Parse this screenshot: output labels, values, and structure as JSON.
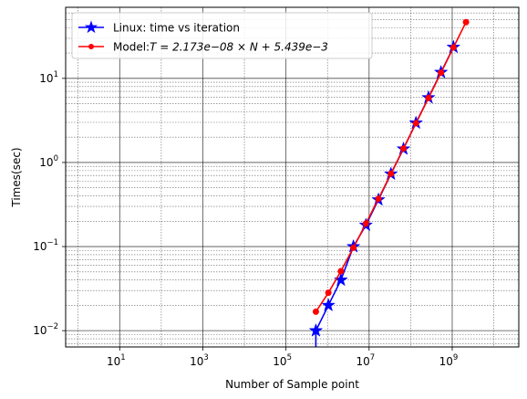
{
  "chart_data": {
    "type": "line",
    "xlabel": "Number of Sample point",
    "ylabel": "Times(sec)",
    "xscale": "log",
    "yscale": "log",
    "xlim": [
      0.5,
      40000000000.0
    ],
    "ylim": [
      0.0064,
      70
    ],
    "x_ticks": [
      {
        "value": 10,
        "base": "10",
        "exp": "1"
      },
      {
        "value": 1000,
        "base": "10",
        "exp": "3"
      },
      {
        "value": 100000,
        "base": "10",
        "exp": "5"
      },
      {
        "value": 10000000,
        "base": "10",
        "exp": "7"
      },
      {
        "value": 1000000000,
        "base": "10",
        "exp": "9"
      }
    ],
    "y_ticks": [
      {
        "value": 0.01,
        "base": "10",
        "exp": "−2"
      },
      {
        "value": 0.1,
        "base": "10",
        "exp": "−1"
      },
      {
        "value": 1,
        "base": "10",
        "exp": "0"
      },
      {
        "value": 10,
        "base": "10",
        "exp": "1"
      }
    ],
    "grid": "major and minor (both axes)",
    "legend_position": "top-left",
    "series": [
      {
        "name": "Linux: time vs iteration",
        "color": "#0000ff",
        "marker": "star",
        "x": [
          524288,
          1048576,
          2097152,
          4194304,
          8388608,
          16777216,
          33554432,
          67108864,
          134217728,
          268435456,
          536870912,
          1073741824
        ],
        "y": [
          0.01,
          0.02,
          0.04,
          0.1,
          0.18,
          0.36,
          0.73,
          1.45,
          2.95,
          5.9,
          11.8,
          23.5
        ],
        "extends_below_axis": true
      },
      {
        "name": "Model:T = 2.173e−08 × N + 5.439e−3",
        "name_plain": "Model:",
        "name_math": "T = 2.173e−08 × N + 5.439e−3",
        "color": "#ff0000",
        "marker": "circle",
        "x": [
          524288,
          1048576,
          2097152,
          4194304,
          8388608,
          16777216,
          33554432,
          67108864,
          134217728,
          268435456,
          536870912,
          1073741824,
          2147483648
        ],
        "y": [
          0.0168,
          0.0282,
          0.051,
          0.0966,
          0.188,
          0.37,
          0.735,
          1.464,
          2.922,
          5.84,
          11.67,
          23.34,
          46.67
        ]
      }
    ]
  }
}
